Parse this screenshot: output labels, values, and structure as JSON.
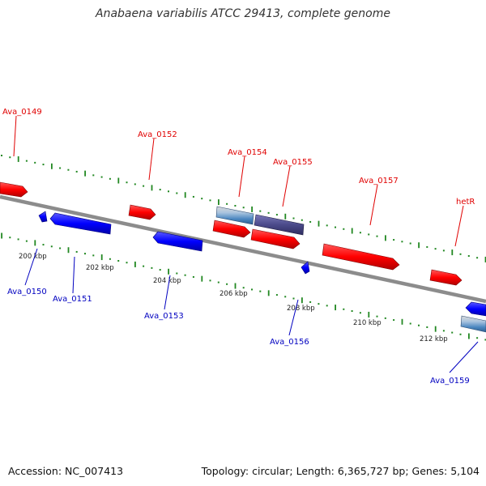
{
  "title": "Anabaena variabilis ATCC 29413, complete genome",
  "footer": {
    "accession": "Accession: NC_007413",
    "summary": "Topology: circular; Length: 6,365,727 bp; Genes: 5,104"
  },
  "colors": {
    "forward_gene": "#ff0000",
    "reverse_gene": "#0000ff",
    "rna_gene": "#4a86c0",
    "pseudo_gene": "#4b4a8a",
    "backbone": "#888888",
    "ticks": "#228822",
    "forward_label": "#e00000",
    "reverse_label": "#0000c0"
  },
  "scale_labels": [
    "200 kbp",
    "202 kbp",
    "204 kbp",
    "206 kbp",
    "208 kbp",
    "210 kbp",
    "212 kbp"
  ],
  "genes": [
    {
      "name": "Ava_0149",
      "strand": "forward"
    },
    {
      "name": "Ava_0150",
      "strand": "reverse"
    },
    {
      "name": "Ava_0151",
      "strand": "reverse"
    },
    {
      "name": "Ava_0152",
      "strand": "forward"
    },
    {
      "name": "Ava_0153",
      "strand": "reverse"
    },
    {
      "name": "Ava_0154",
      "strand": "forward"
    },
    {
      "name": "Ava_0155",
      "strand": "forward"
    },
    {
      "name": "Ava_0156",
      "strand": "reverse"
    },
    {
      "name": "Ava_0157",
      "strand": "forward"
    },
    {
      "name": "hetR",
      "strand": "forward"
    },
    {
      "name": "Ava_0159",
      "strand": "reverse"
    }
  ]
}
